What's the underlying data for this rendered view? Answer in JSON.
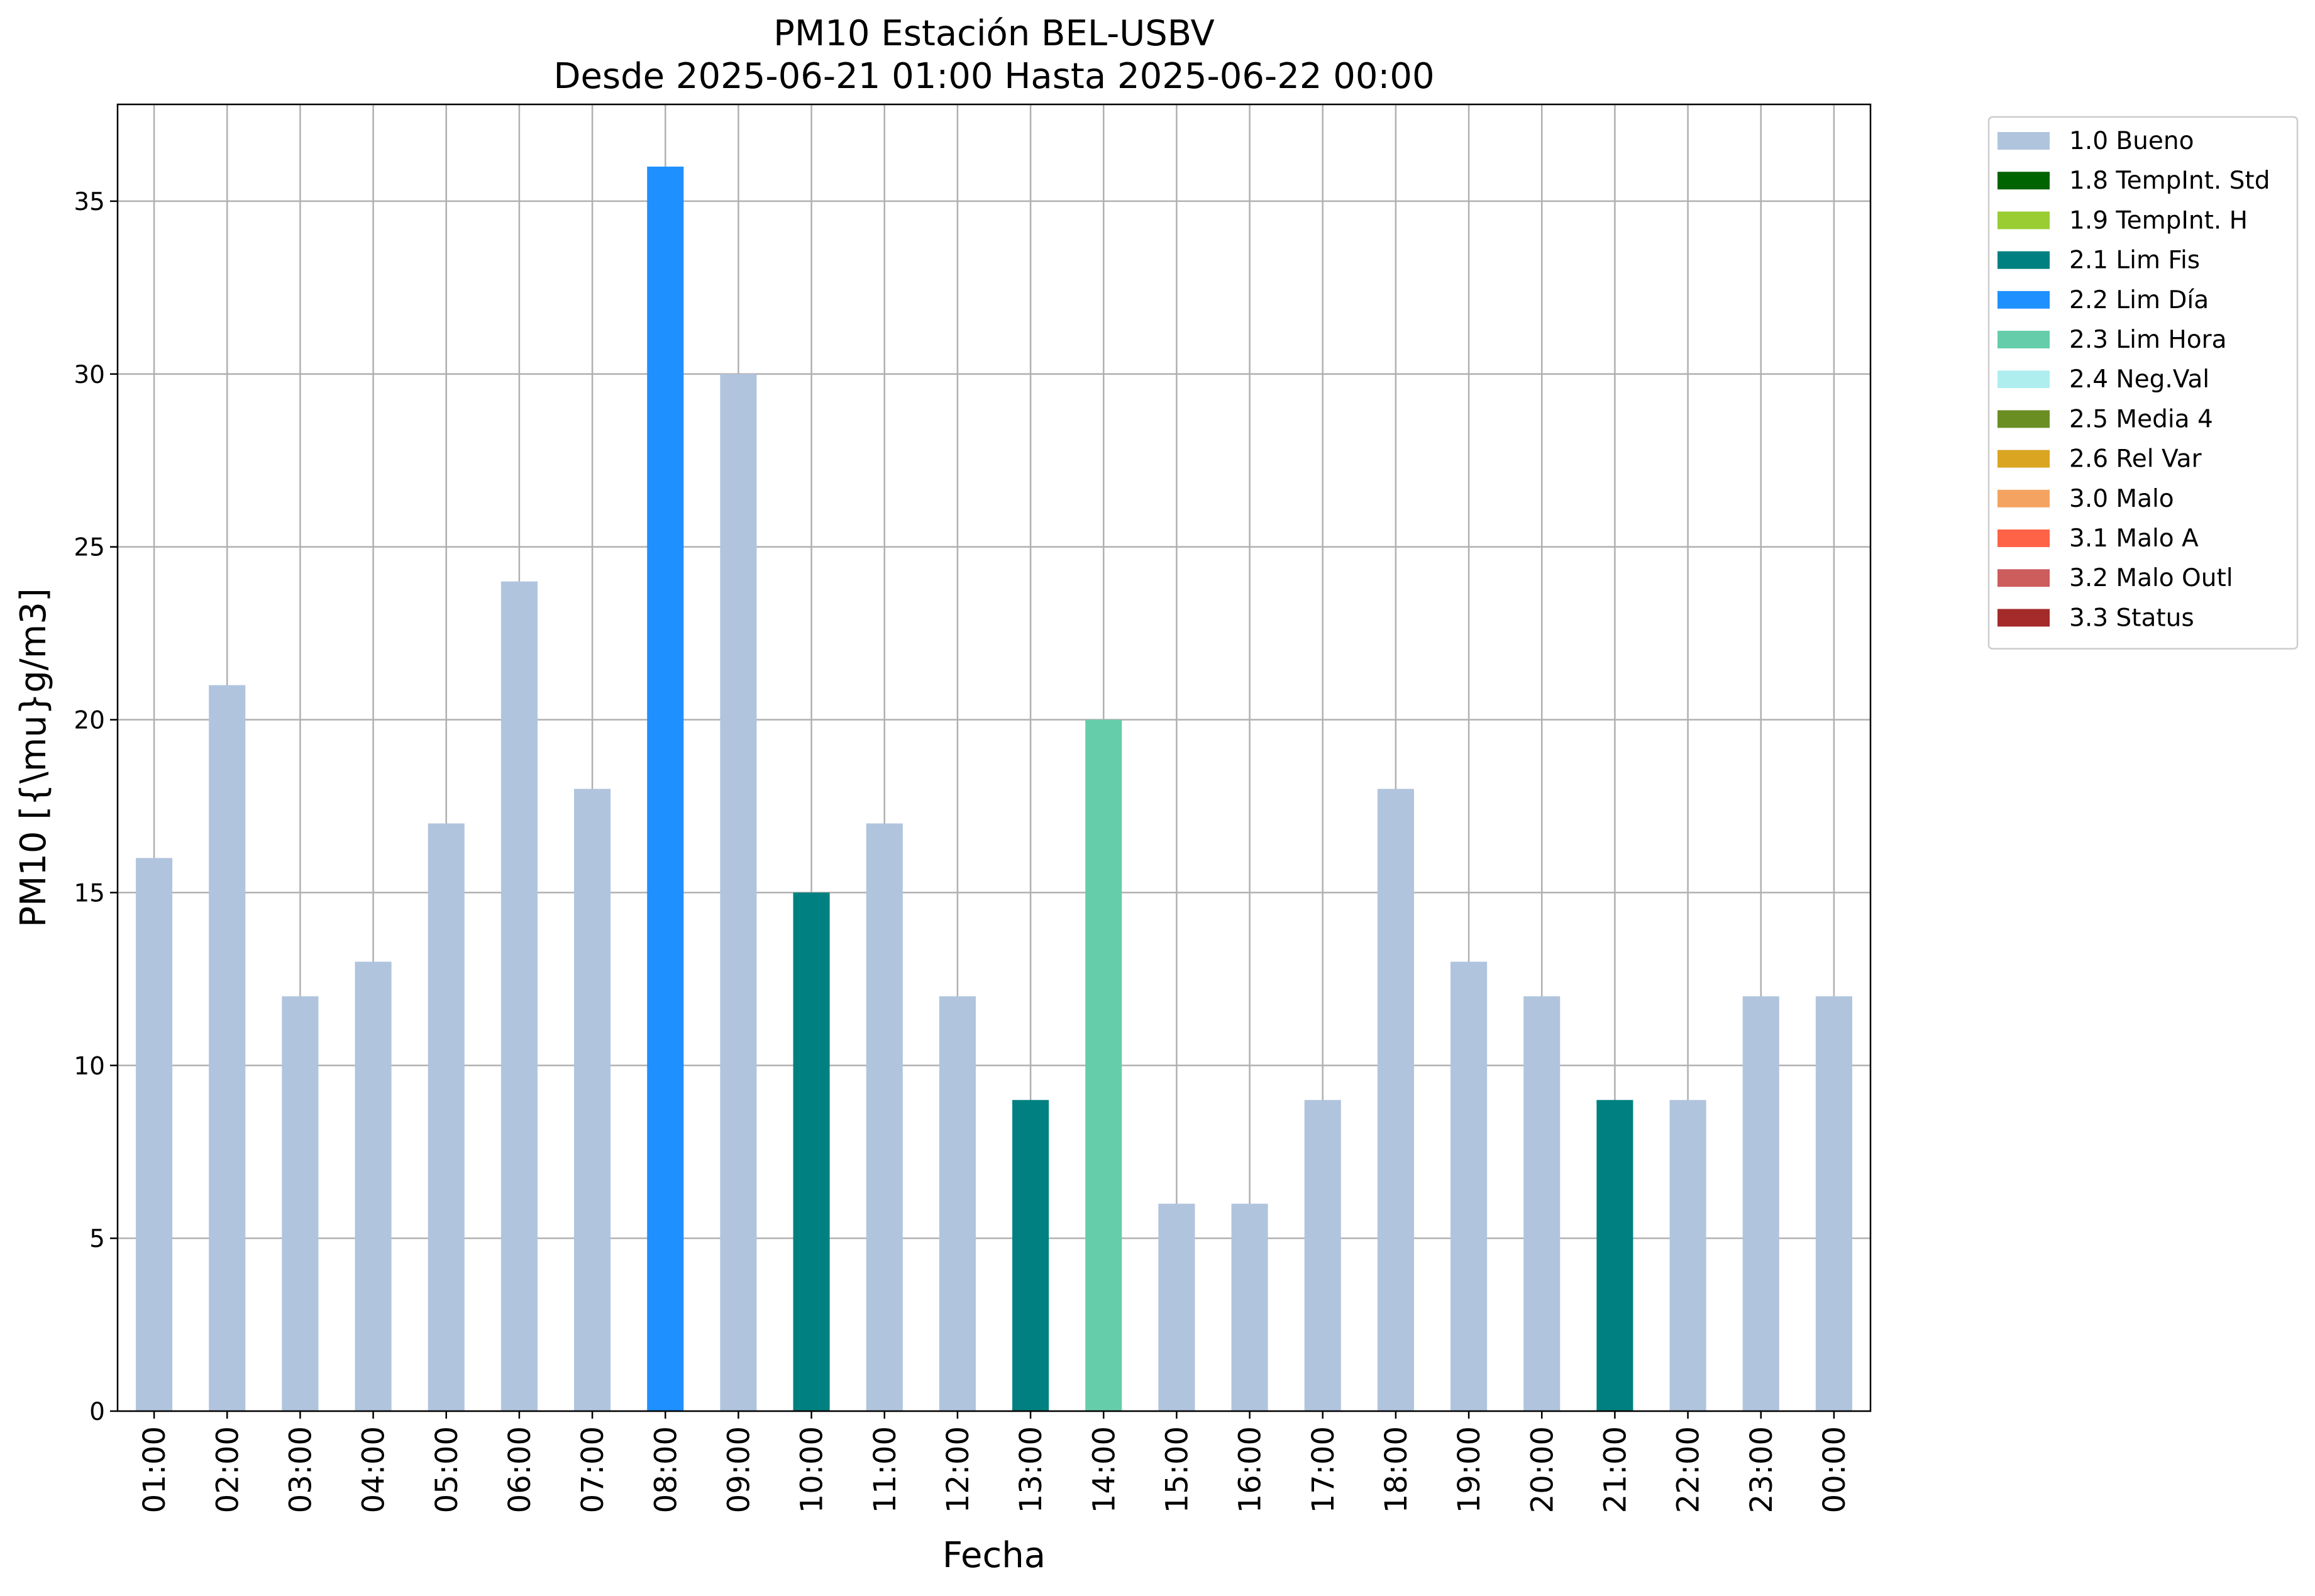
{
  "chart_data": {
    "type": "bar",
    "title": "PM10 Estación BEL-USBV",
    "subtitle": "Desde 2025-06-21 01:00 Hasta 2025-06-22 00:00",
    "xlabel": "Fecha",
    "ylabel": "PM10 [{\\mu}g/m3]",
    "ylim": [
      0,
      37.8
    ],
    "yticks": [
      0,
      5,
      10,
      15,
      20,
      25,
      30,
      35
    ],
    "grid": true,
    "legend_position": "outside-top-right",
    "categories": [
      "01:00",
      "02:00",
      "03:00",
      "04:00",
      "05:00",
      "06:00",
      "07:00",
      "08:00",
      "09:00",
      "10:00",
      "11:00",
      "12:00",
      "13:00",
      "14:00",
      "15:00",
      "16:00",
      "17:00",
      "18:00",
      "19:00",
      "20:00",
      "21:00",
      "22:00",
      "23:00",
      "00:00"
    ],
    "values": [
      16,
      21,
      12,
      13,
      17,
      24,
      18,
      36,
      30,
      15,
      17,
      12,
      9,
      20,
      6,
      6,
      9,
      18,
      13,
      12,
      9,
      9,
      12,
      12
    ],
    "flags": [
      "1.0 Bueno",
      "1.0 Bueno",
      "1.0 Bueno",
      "1.0 Bueno",
      "1.0 Bueno",
      "1.0 Bueno",
      "1.0 Bueno",
      "2.2 Lim Día",
      "1.0 Bueno",
      "2.1 Lim Fis",
      "1.0 Bueno",
      "1.0 Bueno",
      "2.1 Lim Fis",
      "2.3 Lim Hora",
      "1.0 Bueno",
      "1.0 Bueno",
      "1.0 Bueno",
      "1.0 Bueno",
      "1.0 Bueno",
      "1.0 Bueno",
      "2.1 Lim Fis",
      "1.0 Bueno",
      "1.0 Bueno",
      "1.0 Bueno"
    ],
    "legend": [
      {
        "label": "1.0 Bueno",
        "color": "#b0c4de"
      },
      {
        "label": "1.8 TempInt. Std",
        "color": "#006400"
      },
      {
        "label": "1.9 TempInt. H",
        "color": "#9acd32"
      },
      {
        "label": "2.1 Lim Fis",
        "color": "#008080"
      },
      {
        "label": "2.2 Lim Día",
        "color": "#1e90ff"
      },
      {
        "label": "2.3 Lim Hora",
        "color": "#66cdaa"
      },
      {
        "label": "2.4 Neg.Val",
        "color": "#afeeee"
      },
      {
        "label": "2.5 Media 4",
        "color": "#6b8e23"
      },
      {
        "label": "2.6 Rel Var",
        "color": "#daa520"
      },
      {
        "label": "3.0 Malo",
        "color": "#f4a460"
      },
      {
        "label": "3.1 Malo A",
        "color": "#ff6347"
      },
      {
        "label": "3.2 Malo Outl",
        "color": "#cd5c5c"
      },
      {
        "label": "3.3 Status",
        "color": "#a52a2a"
      }
    ]
  }
}
